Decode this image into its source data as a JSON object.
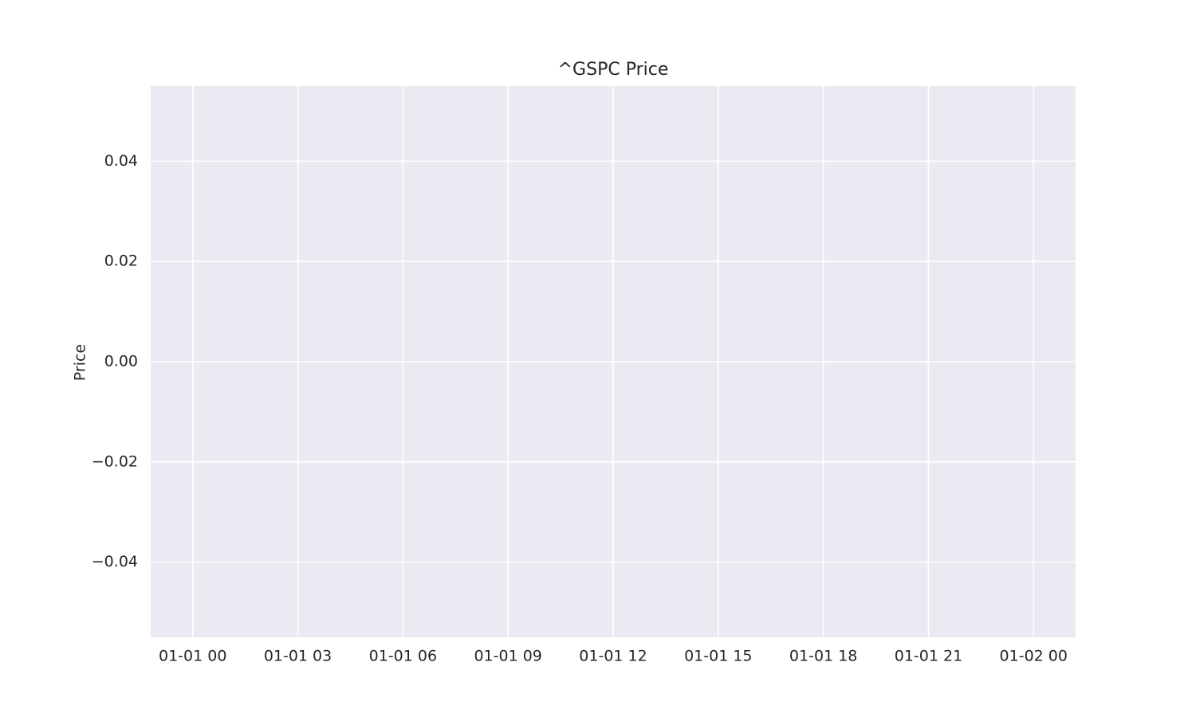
{
  "chart_data": {
    "type": "line",
    "title": "^GSPC Price",
    "y_label": "Price",
    "xlim": [
      -1.2,
      25.2
    ],
    "xticks": [
      {
        "value": 0,
        "label": "01-01 00"
      },
      {
        "value": 3,
        "label": "01-01 03"
      },
      {
        "value": 6,
        "label": "01-01 06"
      },
      {
        "value": 9,
        "label": "01-01 09"
      },
      {
        "value": 12,
        "label": "01-01 12"
      },
      {
        "value": 15,
        "label": "01-01 15"
      },
      {
        "value": 18,
        "label": "01-01 18"
      },
      {
        "value": 21,
        "label": "01-01 21"
      },
      {
        "value": 24,
        "label": "01-02 00"
      }
    ],
    "ylim": [
      -0.055,
      0.055
    ],
    "yticks": [
      {
        "value": -0.04,
        "label": "−0.04"
      },
      {
        "value": -0.02,
        "label": "−0.02"
      },
      {
        "value": 0,
        "label": "0.00"
      },
      {
        "value": 0.02,
        "label": "0.02"
      },
      {
        "value": 0.04,
        "label": "0.04"
      }
    ],
    "grid": true,
    "background": "#eaeaf2"
  }
}
